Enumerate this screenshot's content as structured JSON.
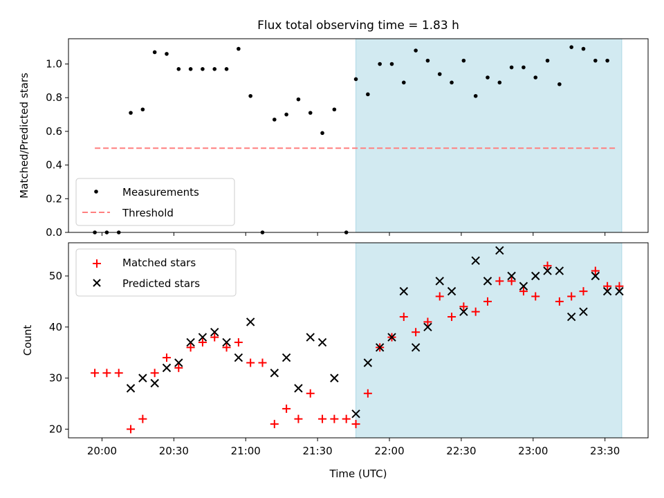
{
  "chart_data": {
    "type": "scatter",
    "title": "Flux total observing time = 1.83 h",
    "xlabel": "Time (UTC)",
    "x_ticks": [
      "20:00",
      "20:30",
      "21:00",
      "21:30",
      "22:00",
      "22:30",
      "23:00",
      "23:30"
    ],
    "x_tick_minutes": [
      0,
      30,
      60,
      90,
      120,
      150,
      180,
      210
    ],
    "x_range_minutes": [
      -14,
      228
    ],
    "shaded_interval_minutes": [
      106,
      217
    ],
    "shade_color": "#add8e6",
    "top_panel": {
      "ylabel": "Matched/Predicted stars",
      "ylim": [
        0,
        1.15
      ],
      "y_ticks": [
        "0.0",
        "0.2",
        "0.4",
        "0.6",
        "0.8",
        "1.0"
      ],
      "y_tick_values": [
        0,
        0.2,
        0.4,
        0.6,
        0.8,
        1.0
      ],
      "threshold": {
        "name": "Threshold",
        "y": 0.5,
        "x_range": [
          -3,
          215
        ],
        "color": "#ff7f7f"
      },
      "measurements": {
        "name": "Measurements",
        "color": "#000000",
        "x": [
          -3,
          2,
          7,
          12,
          17,
          22,
          27,
          32,
          37,
          42,
          47,
          52,
          57,
          62,
          67,
          72,
          77,
          82,
          87,
          92,
          97,
          102,
          106,
          111,
          116,
          121,
          126,
          131,
          136,
          141,
          146,
          151,
          156,
          161,
          166,
          171,
          176,
          181,
          186,
          191,
          196,
          201,
          206,
          211
        ],
        "y": [
          0.0,
          0.0,
          0.0,
          0.71,
          0.73,
          1.07,
          1.06,
          0.97,
          0.97,
          0.97,
          0.97,
          0.97,
          1.09,
          0.81,
          0.0,
          0.67,
          0.7,
          0.79,
          0.71,
          0.59,
          0.73,
          0.0,
          0.91,
          0.82,
          1.0,
          1.0,
          0.89,
          1.08,
          1.02,
          0.94,
          0.89,
          1.02,
          0.81,
          0.92,
          0.89,
          0.98,
          0.98,
          0.92,
          1.02,
          0.88,
          1.1,
          1.09,
          1.02,
          1.02
        ]
      },
      "legend": [
        "Measurements",
        "Threshold"
      ]
    },
    "bottom_panel": {
      "ylabel": "Count",
      "ylim": [
        18.3,
        56.5
      ],
      "y_ticks": [
        "20",
        "30",
        "40",
        "50"
      ],
      "y_tick_values": [
        20,
        30,
        40,
        50
      ],
      "matched": {
        "name": "Matched stars",
        "color": "#ff0000",
        "x": [
          -3,
          2,
          7,
          12,
          17,
          22,
          27,
          32,
          37,
          42,
          47,
          52,
          57,
          62,
          67,
          72,
          77,
          82,
          87,
          92,
          97,
          102,
          106,
          111,
          116,
          121,
          126,
          131,
          136,
          141,
          146,
          151,
          156,
          161,
          166,
          171,
          176,
          181,
          186,
          191,
          196,
          201,
          206,
          211
        ],
        "y": [
          31,
          31,
          31,
          20,
          22,
          31,
          34,
          32,
          36,
          37,
          38,
          36,
          37,
          33,
          33,
          21,
          24,
          22,
          27,
          22,
          22,
          22,
          21,
          27,
          36,
          38,
          42,
          39,
          41,
          46,
          42,
          44,
          43,
          45,
          49,
          49,
          47,
          46,
          52,
          45,
          46,
          47,
          51,
          48
        ]
      },
      "predicted": {
        "name": "Predicted stars",
        "color": "#000000",
        "x": [
          12,
          17,
          22,
          27,
          32,
          37,
          42,
          47,
          52,
          57,
          62,
          72,
          77,
          82,
          87,
          92,
          97,
          106,
          111,
          116,
          121,
          126,
          131,
          136,
          141,
          146,
          151,
          156,
          161,
          166,
          171,
          176,
          181,
          186,
          191,
          196,
          201,
          206,
          211
        ],
        "y": [
          28,
          30,
          29,
          32,
          33,
          37,
          38,
          39,
          37,
          34,
          41,
          31,
          34,
          28,
          38,
          37,
          30,
          23,
          33,
          36,
          38,
          47,
          36,
          40,
          49,
          47,
          43,
          53,
          49,
          55,
          50,
          48,
          50,
          51,
          51,
          42,
          43,
          50,
          47
        ]
      },
      "extra_predicted": {
        "x": [
          216
        ],
        "y": [
          47
        ]
      },
      "extra_matched": {
        "x": [
          216
        ],
        "y": [
          48
        ]
      },
      "legend": [
        "Matched stars",
        "Predicted stars"
      ]
    }
  }
}
